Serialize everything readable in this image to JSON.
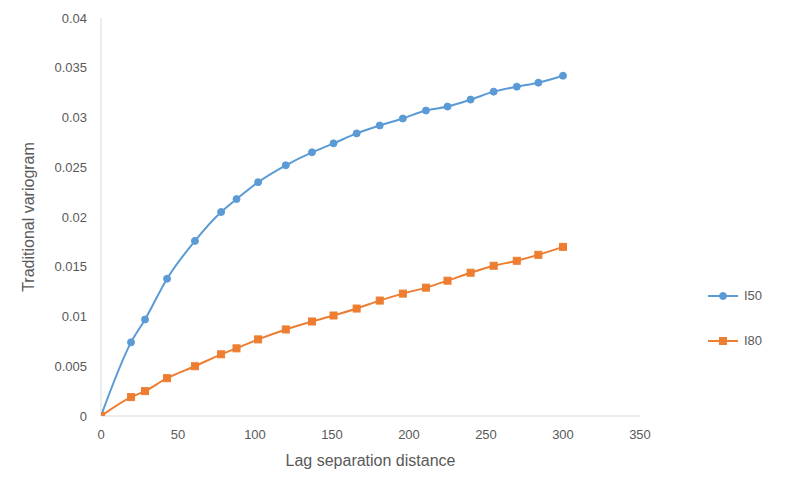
{
  "chart_data": {
    "type": "line",
    "x_label": "Lag separation distance",
    "y_label": "Traditional variogram",
    "x": [
      0,
      19.5,
      28.6,
      42.9,
      61,
      78,
      88,
      102,
      120,
      137,
      151,
      166,
      181,
      196,
      211,
      225,
      240,
      255,
      270,
      284,
      300
    ],
    "series": [
      {
        "name": "I50",
        "color": "#5b9bd5",
        "marker": "circle",
        "values": [
          0,
          0.0074,
          0.0097,
          0.0138,
          0.0176,
          0.0205,
          0.0218,
          0.0235,
          0.0252,
          0.0265,
          0.0274,
          0.0284,
          0.0292,
          0.0299,
          0.0307,
          0.0311,
          0.0318,
          0.0326,
          0.0331,
          0.0335,
          0.0342
        ]
      },
      {
        "name": "I80",
        "color": "#ed7d31",
        "marker": "square",
        "values": [
          0,
          0.0019,
          0.0025,
          0.0038,
          0.005,
          0.0062,
          0.0068,
          0.0077,
          0.0087,
          0.0095,
          0.0101,
          0.0108,
          0.0116,
          0.0123,
          0.0129,
          0.0136,
          0.0144,
          0.0151,
          0.0156,
          0.0162,
          0.017
        ]
      }
    ],
    "xlim": [
      0,
      350
    ],
    "xticks": [
      0,
      50,
      100,
      150,
      200,
      250,
      300,
      350
    ],
    "ylim": [
      0,
      0.04
    ],
    "yticks": [
      0,
      0.005,
      0.01,
      0.015,
      0.02,
      0.025,
      0.03,
      0.035,
      0.04
    ],
    "grid": false,
    "legend": "right"
  }
}
